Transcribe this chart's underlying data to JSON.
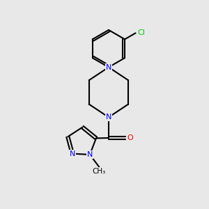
{
  "bg_color": "#e8e8e8",
  "bond_color": "#000000",
  "atom_colors": {
    "N": "#0000ff",
    "O": "#ff0000",
    "Cl": "#00cc00",
    "C": "#000000"
  },
  "figsize": [
    3.0,
    3.0
  ],
  "dpi": 100
}
